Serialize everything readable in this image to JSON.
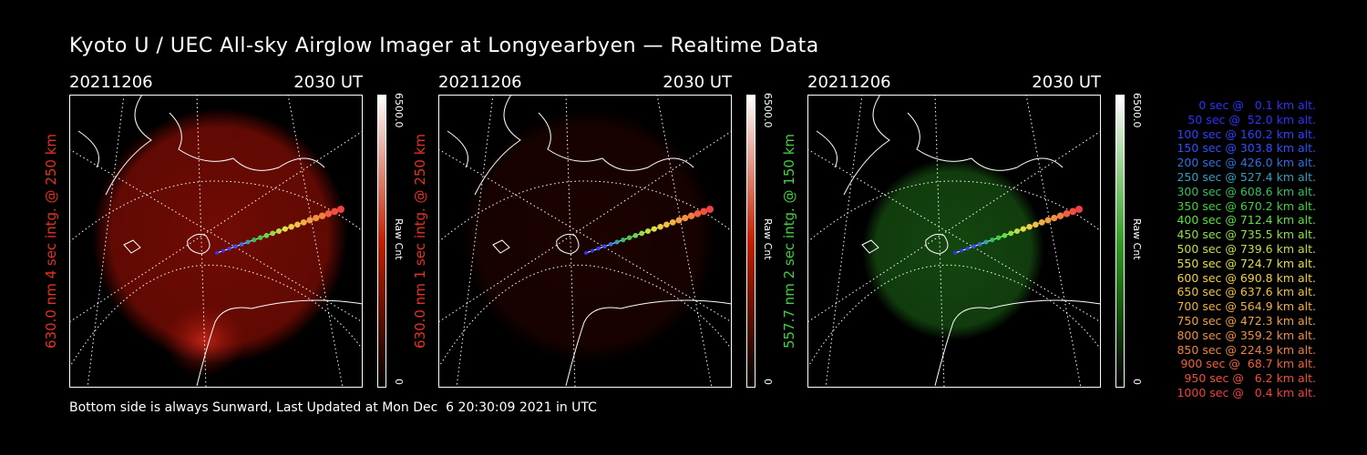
{
  "title": "Kyoto U / UEC All-sky Airglow Imager at Longyearbyen — Realtime Data",
  "footer": "Bottom side is always Sunward, Last Updated at Mon Dec  6 20:30:09 2021 in UTC",
  "panels": [
    {
      "date": "20211206",
      "time": "2030 UT",
      "label": "630.0 nm 4 sec intg. @ 250 km",
      "label_color": "#e83020",
      "cbar_max": "6500.0",
      "cbar_min": "0",
      "cbar_unit": "Raw Cnt",
      "cbar_color": "#c02000",
      "glow": "red",
      "glow_intensity": 0.75
    },
    {
      "date": "20211206",
      "time": "2030 UT",
      "label": "630.0 nm 1 sec intg. @ 250 km",
      "label_color": "#e83020",
      "cbar_max": "6500.0",
      "cbar_min": "0",
      "cbar_unit": "Raw Cnt",
      "cbar_color": "#c02000",
      "glow": "red",
      "glow_intensity": 0.18
    },
    {
      "date": "20211206",
      "time": "2030 UT",
      "label": "557.7 nm 2 sec intg. @ 150 km",
      "label_color": "#40d040",
      "cbar_max": "6500.0",
      "cbar_min": "0",
      "cbar_unit": "Raw Cnt",
      "cbar_color": "#30a020",
      "glow": "green",
      "glow_intensity": 0.5
    }
  ],
  "legend": [
    {
      "text": "0 sec @   0.1 km alt.",
      "color": "#3030ff"
    },
    {
      "text": "50 sec @  52.0 km alt.",
      "color": "#3030ff"
    },
    {
      "text": "100 sec @ 160.2 km alt.",
      "color": "#3040ff"
    },
    {
      "text": "150 sec @ 303.8 km alt.",
      "color": "#3050ff"
    },
    {
      "text": "200 sec @ 426.0 km alt.",
      "color": "#3070e0"
    },
    {
      "text": "250 sec @ 527.4 km alt.",
      "color": "#30a0c0"
    },
    {
      "text": "300 sec @ 608.6 km alt.",
      "color": "#30c060"
    },
    {
      "text": "350 sec @ 670.2 km alt.",
      "color": "#40d040"
    },
    {
      "text": "400 sec @ 712.4 km alt.",
      "color": "#60e040"
    },
    {
      "text": "450 sec @ 735.5 km alt.",
      "color": "#90e040"
    },
    {
      "text": "500 sec @ 739.6 km alt.",
      "color": "#c0e040"
    },
    {
      "text": "550 sec @ 724.7 km alt.",
      "color": "#e0e040"
    },
    {
      "text": "600 sec @ 690.8 km alt.",
      "color": "#f0d040"
    },
    {
      "text": "650 sec @ 637.6 km alt.",
      "color": "#f0c040"
    },
    {
      "text": "700 sec @ 564.9 km alt.",
      "color": "#f0b040"
    },
    {
      "text": "750 sec @ 472.3 km alt.",
      "color": "#f0a040"
    },
    {
      "text": "800 sec @ 359.2 km alt.",
      "color": "#f09040"
    },
    {
      "text": "850 sec @ 224.9 km alt.",
      "color": "#f08040"
    },
    {
      "text": "900 sec @  68.7 km alt.",
      "color": "#f06040"
    },
    {
      "text": "950 sec @   6.2 km alt.",
      "color": "#f05040"
    },
    {
      "text": "1000 sec @   0.4 km alt.",
      "color": "#f04040"
    }
  ]
}
